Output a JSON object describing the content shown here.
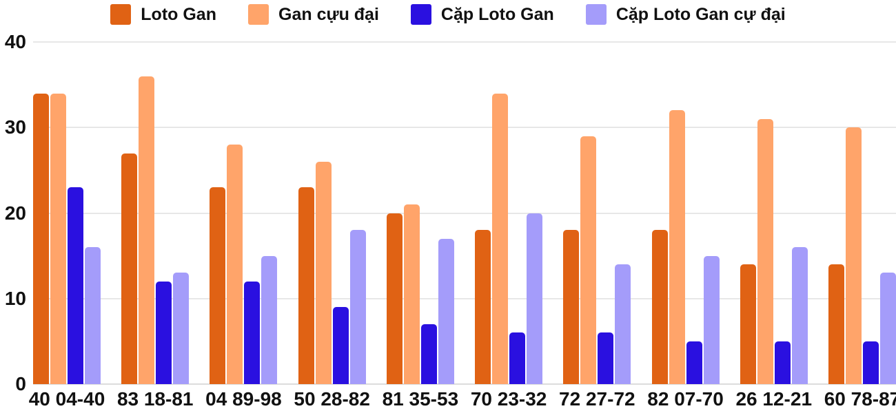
{
  "chart_data": {
    "type": "bar",
    "title": "",
    "xlabel": "",
    "ylabel": "",
    "ylim": [
      0,
      40
    ],
    "yticks": [
      0,
      10,
      20,
      30,
      40
    ],
    "grid": true,
    "legend_position": "top",
    "background_color": "#ffffff",
    "gridline_color": "#e7e7e7",
    "text_color": "#111111",
    "categories": [
      "40 04-40",
      "83 18-81",
      "04 89-98",
      "50 28-82",
      "81 35-53",
      "70 23-32",
      "72 27-72",
      "82 07-70",
      "26 12-21",
      "60 78-87"
    ],
    "series": [
      {
        "name": "Loto Gan",
        "color": "#e06214",
        "values": [
          34,
          27,
          23,
          23,
          20,
          18,
          18,
          18,
          14,
          14
        ]
      },
      {
        "name": "Gan cựu đại",
        "color": "#ffa46a",
        "values": [
          34,
          36,
          28,
          26,
          21,
          34,
          29,
          32,
          31,
          30
        ]
      },
      {
        "name": "Cặp Loto Gan",
        "color": "#2a10e0",
        "values": [
          23,
          12,
          12,
          9,
          7,
          6,
          6,
          5,
          5,
          5
        ]
      },
      {
        "name": "Cặp Loto Gan cự đại",
        "color": "#a49cfa",
        "values": [
          16,
          13,
          15,
          18,
          17,
          20,
          14,
          15,
          16,
          13
        ]
      }
    ]
  }
}
